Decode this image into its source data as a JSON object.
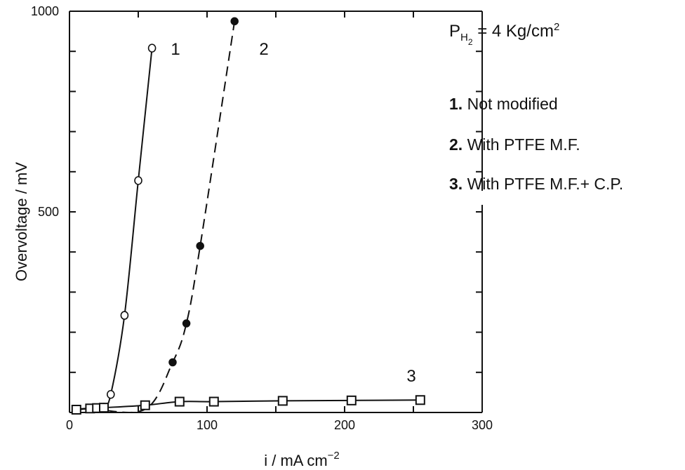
{
  "chart_data": {
    "type": "line",
    "title": "",
    "xlabel": "i / mA cm",
    "xlabel_exponent": "−2",
    "ylabel": "Overvoltage / mV",
    "xlim": [
      0,
      300
    ],
    "ylim": [
      0,
      1000
    ],
    "x_tick_labels": [
      "0",
      "100",
      "200",
      "300"
    ],
    "y_tick_labels": [
      "500",
      "1000"
    ],
    "grid": false,
    "series": [
      {
        "name": "1",
        "style": "solid",
        "marker": "open-circle",
        "points": [
          [
            5,
            7
          ],
          [
            15,
            10
          ],
          [
            20,
            11
          ],
          [
            25,
            13
          ],
          [
            30,
            45
          ],
          [
            40,
            242
          ],
          [
            50,
            578
          ],
          [
            60,
            908
          ]
        ]
      },
      {
        "name": "2",
        "style": "dashed",
        "marker": "filled-circle",
        "points": [
          [
            5,
            7
          ],
          [
            15,
            10
          ],
          [
            55,
            8
          ],
          [
            75,
            125
          ],
          [
            85,
            222
          ],
          [
            95,
            415
          ],
          [
            120,
            975
          ]
        ]
      },
      {
        "name": "3",
        "style": "solid",
        "marker": "open-square",
        "points": [
          [
            5,
            7
          ],
          [
            15,
            10
          ],
          [
            20,
            11
          ],
          [
            25,
            12
          ],
          [
            55,
            18
          ],
          [
            80,
            27
          ],
          [
            105,
            27
          ],
          [
            155,
            29
          ],
          [
            205,
            30
          ],
          [
            255,
            31
          ]
        ]
      }
    ]
  },
  "legend": {
    "condition_prefix": "P",
    "condition_sub": "H",
    "condition_subsub": "2",
    "condition_eq": " =  4 Kg/cm",
    "condition_sup": "2",
    "items": [
      {
        "num": "1.",
        "label": " Not modified"
      },
      {
        "num": "2.",
        "label": " With PTFE M.F."
      },
      {
        "num": "3.",
        "label": " With PTFE M.F.+ C.P."
      }
    ]
  }
}
